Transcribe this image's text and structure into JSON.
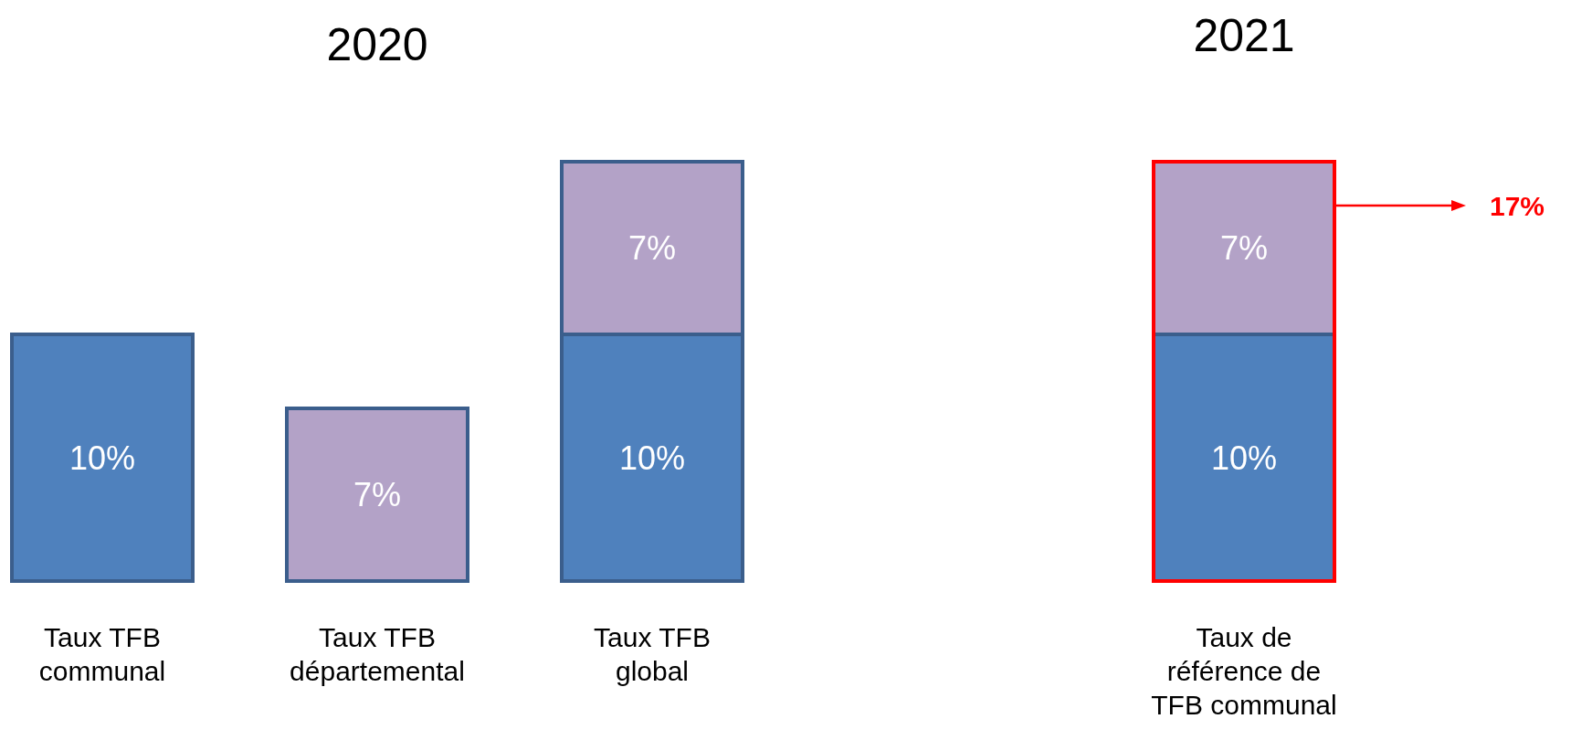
{
  "chart_data": [
    {
      "type": "bar",
      "title": "2020",
      "categories": [
        "Taux TFB communal",
        "Taux TFB départemental",
        "Taux TFB global"
      ],
      "stacked": true,
      "series": [
        {
          "color": "#4f81bd",
          "values": [
            10,
            null,
            10
          ],
          "value_labels": [
            "10%",
            null,
            "10%"
          ]
        },
        {
          "color": "#b3a2c7",
          "values": [
            null,
            7,
            7
          ],
          "value_labels": [
            null,
            "7%",
            "7%"
          ]
        }
      ]
    },
    {
      "type": "bar",
      "title": "2021",
      "categories": [
        "Taux de référence de TFB communal"
      ],
      "stacked": true,
      "annotations": [
        "17%"
      ],
      "series": [
        {
          "color": "#4f81bd",
          "values": [
            10
          ],
          "value_labels": [
            "10%"
          ]
        },
        {
          "color": "#b3a2c7",
          "values": [
            7
          ],
          "value_labels": [
            "7%"
          ]
        }
      ]
    }
  ]
}
